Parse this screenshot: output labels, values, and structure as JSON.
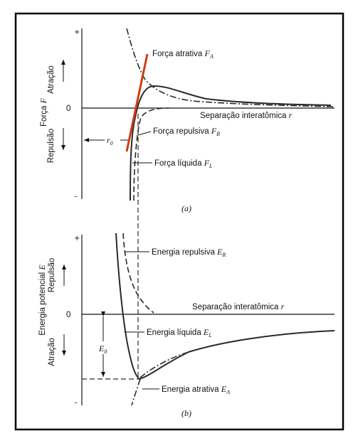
{
  "panel_a": {
    "caption": "(a)",
    "axis_title_main": "Força ",
    "axis_title_var": "F",
    "attraction": "Atração",
    "repulsion": "Repulsão",
    "plus": "+",
    "zero": "0",
    "minus": "–",
    "x_axis_label_main": "Separação interatômica ",
    "x_axis_label_var": "r",
    "attractive_main": "Força atrativa ",
    "attractive_var": "F",
    "attractive_sub": "A",
    "repulsive_main": "Força repulsiva ",
    "repulsive_var": "F",
    "repulsive_sub": "R",
    "net_main": "Força líquida ",
    "net_var": "F",
    "net_sub": "L",
    "r0_var": "r",
    "r0_sub": "0"
  },
  "panel_b": {
    "caption": "(b)",
    "axis_title_main": "Energia potencial ",
    "axis_title_var": "E",
    "repulsion": "Repulsão",
    "attraction": "Atração",
    "plus": "+",
    "zero": "0",
    "minus": "–",
    "x_axis_label_main": "Separação interatômica ",
    "x_axis_label_var": "r",
    "repulsive_main": "Energia repulsiva ",
    "repulsive_var": "E",
    "repulsive_sub": "R",
    "net_main": "Energia líquida ",
    "net_var": "E",
    "net_sub": "L",
    "attractive_main": "Energia atrativa ",
    "attractive_var": "E",
    "attractive_sub": "A",
    "e0_var": "E",
    "e0_sub": "0"
  },
  "colors": {
    "curve": "#2a2a2a",
    "tangent": "#d03a10",
    "frame": "#000000"
  }
}
